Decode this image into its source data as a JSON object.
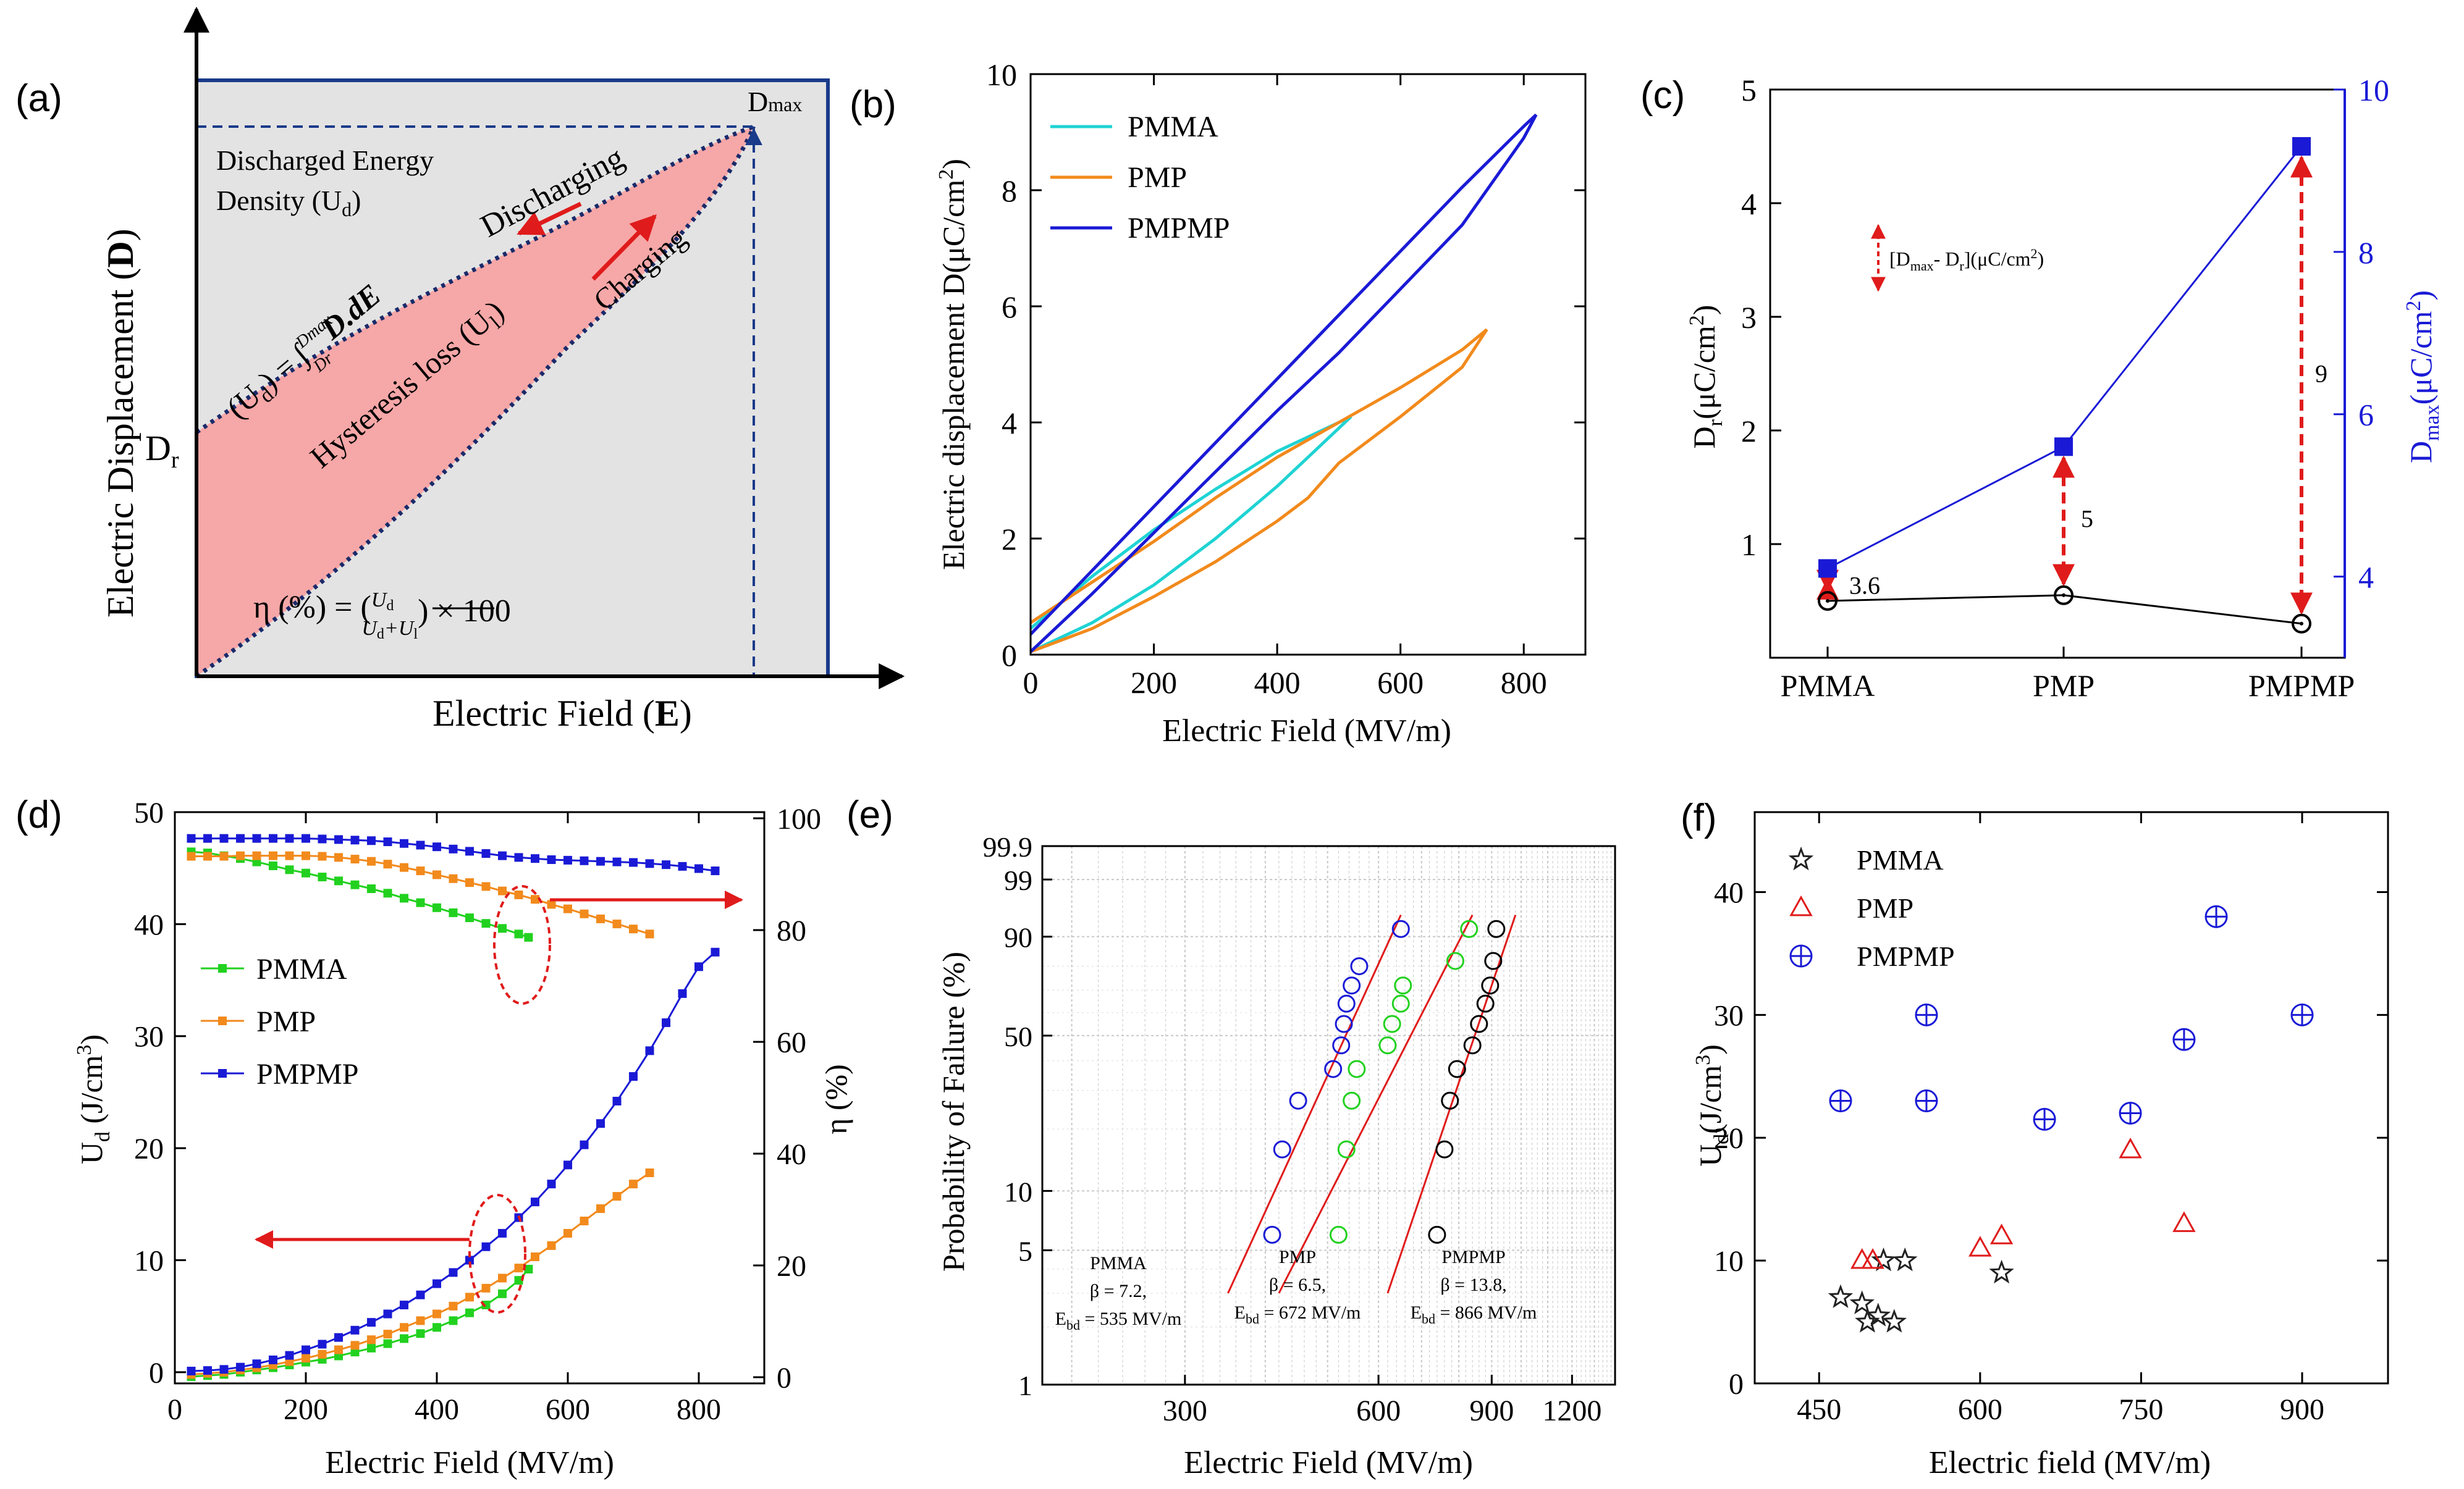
{
  "panels": {
    "a": {
      "label": "(a)",
      "xlabel_main": "Electric Field (",
      "xlabel_bold": "E",
      "xlabel_end": ")",
      "ylabel_main": "Electric Displacement (",
      "ylabel_bold": "D",
      "ylabel_end": ")",
      "dmax_label": "D",
      "dmax_sub": "max",
      "dr_label": "D",
      "dr_sub": "r",
      "discharged_line1": "Discharged Energy",
      "discharged_line2": "Density (U",
      "discharged_line2_sub": "d",
      "discharged_line2_end": ")",
      "discharging": "Discharging",
      "charging": "Charging",
      "hysteresis": "Hysteresis loss (U",
      "hysteresis_sub": "l",
      "hysteresis_end": ")",
      "integral_lhs": "(U",
      "integral_lhs_sub": "d",
      "integral_lhs_end": ") = ∫",
      "integral_upper": "Dmax",
      "integral_lower": "Dr",
      "integral_body": "D.dE",
      "efficiency": "η (%) = (",
      "eff_num": "U",
      "eff_num_sub": "d",
      "eff_den": "U",
      "eff_den_sub1": "d",
      "eff_den_plus": "+U",
      "eff_den_sub2": "l",
      "eff_end": ") × 100"
    },
    "b": {
      "label": "(b)",
      "xlabel": "Electric Field (MV/m)",
      "ylabel": "Electric displacement D(μC/cm",
      "ylabel_sup": "2",
      "ylabel_end": ")",
      "xticks": [
        "0",
        "200",
        "400",
        "600",
        "800"
      ],
      "yticks": [
        "0",
        "2",
        "4",
        "6",
        "8",
        "10"
      ]
    },
    "c": {
      "label": "(c)",
      "ylabel_left": "D",
      "ylabel_left_sub": "r",
      "ylabel_left_unit": "(μC/cm",
      "ylabel_left_sup": "2",
      "ylabel_left_end": ")",
      "ylabel_right": "D",
      "ylabel_right_sub": "max",
      "ylabel_right_unit": "(μC/cm",
      "ylabel_right_sup": "2",
      "ylabel_right_end": ")",
      "yticks_left": [
        "1",
        "2",
        "3",
        "4",
        "5"
      ],
      "yticks_right": [
        "4",
        "6",
        "8",
        "10"
      ],
      "legend_text": "[D",
      "legend_sub1": "max",
      "legend_mid": "- D",
      "legend_sub2": "r",
      "legend_end": "](μC/cm",
      "legend_sup": "2",
      "legend_close": ")"
    },
    "d": {
      "label": "(d)",
      "xlabel": "Electric Field (MV/m)",
      "ylabel_left": "U",
      "ylabel_left_sub": "d",
      "ylabel_left_unit": " (J/cm",
      "ylabel_left_sup": "3",
      "ylabel_left_end": ")",
      "ylabel_right": "η (%)",
      "xticks": [
        "0",
        "200",
        "400",
        "600",
        "800"
      ],
      "yticks_left": [
        "0",
        "10",
        "20",
        "30",
        "40",
        "50"
      ],
      "yticks_right": [
        "0",
        "20",
        "40",
        "60",
        "80",
        "100"
      ]
    },
    "e": {
      "label": "(e)",
      "xlabel": "Electric Field (MV/m)",
      "ylabel": "Probability of Failure (%)",
      "xticks": [
        "300",
        "600",
        "900",
        "1200"
      ],
      "yticks": [
        "1",
        "5",
        "10",
        "50",
        "90",
        "99",
        "99.9"
      ],
      "ann_pmma": [
        "PMMA",
        "β = 7.2,",
        "E",
        "bd",
        " = 535 MV/m"
      ],
      "ann_pmp": [
        "PMP",
        "β = 6.5,",
        "E",
        "bd",
        " = 672 MV/m"
      ],
      "ann_pmpmp": [
        "PMPMP",
        "β = 13.8,",
        "E",
        "bd",
        " = 866 MV/m"
      ]
    },
    "f": {
      "label": "(f)",
      "xlabel": "Electric field (MV/m)",
      "ylabel": "U",
      "ylabel_sub": "d",
      "ylabel_unit": "(J/cm",
      "ylabel_sup": "3",
      "ylabel_end": ")",
      "xticks": [
        "450",
        "600",
        "750",
        "900"
      ],
      "yticks": [
        "0",
        "10",
        "20",
        "30",
        "40"
      ]
    }
  },
  "colors": {
    "pmma_b": "#1fd3d3",
    "pmp": "#f28a1c",
    "pmpmp": "#1a1ad6",
    "pmma_d": "#22d11f",
    "red": "#e01b1b",
    "axis": "#000000",
    "grey_fill": "#e3e3e3",
    "pink_fill": "#f6a7a7"
  },
  "chart_data": [
    {
      "panel": "b",
      "type": "line",
      "xlabel": "Electric Field (MV/m)",
      "ylabel": "Electric displacement D(μC/cm2)",
      "xlim": [
        0,
        900
      ],
      "ylim": [
        0,
        10
      ],
      "series": [
        {
          "name": "PMMA",
          "color": "#1fd3d3",
          "x": [
            0,
            100,
            200,
            300,
            400,
            450,
            520,
            450,
            400,
            300,
            200,
            100,
            0
          ],
          "y": [
            0.05,
            0.55,
            1.2,
            2.0,
            2.9,
            3.4,
            4.1,
            3.75,
            3.5,
            2.85,
            2.15,
            1.35,
            0.45
          ]
        },
        {
          "name": "PMP",
          "color": "#f28a1c",
          "x": [
            0,
            100,
            200,
            300,
            400,
            450,
            500,
            600,
            700,
            740,
            700,
            600,
            500,
            400,
            300,
            200,
            100,
            0
          ],
          "y": [
            0.05,
            0.45,
            1.0,
            1.6,
            2.3,
            2.7,
            3.3,
            4.1,
            4.95,
            5.6,
            5.25,
            4.6,
            4.0,
            3.4,
            2.7,
            1.95,
            1.25,
            0.55
          ]
        },
        {
          "name": "PMPMP",
          "color": "#1a1ad6",
          "x": [
            0,
            100,
            200,
            300,
            400,
            500,
            600,
            700,
            800,
            820,
            800,
            700,
            600,
            500,
            400,
            300,
            200,
            100,
            0
          ],
          "y": [
            0.05,
            1.05,
            2.1,
            3.15,
            4.2,
            5.2,
            6.3,
            7.4,
            8.9,
            9.3,
            9.1,
            8.05,
            6.95,
            5.85,
            4.75,
            3.65,
            2.55,
            1.45,
            0.35
          ]
        }
      ]
    },
    {
      "panel": "c",
      "type": "line",
      "categories": [
        "PMMA",
        "PMP",
        "PMPMP"
      ],
      "ylim_left": [
        0.2,
        5
      ],
      "ylim_right": [
        3.2,
        10
      ],
      "series": [
        {
          "name": "Dr",
          "axis": "left",
          "color": "#000000",
          "values": [
            0.5,
            0.55,
            0.3
          ]
        },
        {
          "name": "Dmax",
          "axis": "right",
          "color": "#1a1ad6",
          "values": [
            4.1,
            5.6,
            9.3
          ]
        }
      ],
      "arrow_labels": [
        "3.6",
        "5",
        "9"
      ]
    },
    {
      "panel": "d",
      "type": "line",
      "xlabel": "Electric Field (MV/m)",
      "xlim": [
        0,
        900
      ],
      "ylim_left": [
        -1,
        50
      ],
      "ylim_right": [
        0,
        100
      ],
      "series": [
        {
          "name": "PMMA",
          "axis": "left",
          "color": "#22d11f",
          "x": [
            25,
            50,
            75,
            100,
            125,
            150,
            175,
            200,
            225,
            250,
            275,
            300,
            325,
            350,
            375,
            400,
            425,
            450,
            475,
            500,
            525,
            540
          ],
          "y": [
            -0.4,
            -0.3,
            -0.2,
            0.0,
            0.2,
            0.4,
            0.65,
            0.9,
            1.15,
            1.45,
            1.8,
            2.15,
            2.55,
            3.0,
            3.45,
            4.0,
            4.6,
            5.3,
            6.0,
            7.0,
            8.2,
            9.2
          ]
        },
        {
          "name": "PMP",
          "axis": "left",
          "color": "#f28a1c",
          "x": [
            25,
            50,
            75,
            100,
            125,
            150,
            175,
            200,
            225,
            250,
            275,
            300,
            325,
            350,
            375,
            400,
            425,
            450,
            475,
            500,
            525,
            550,
            575,
            600,
            625,
            650,
            675,
            700,
            725
          ],
          "y": [
            -0.2,
            -0.1,
            0.0,
            0.2,
            0.4,
            0.65,
            0.95,
            1.25,
            1.6,
            2.0,
            2.4,
            2.9,
            3.4,
            4.0,
            4.6,
            5.2,
            5.9,
            6.7,
            7.5,
            8.4,
            9.3,
            10.3,
            11.3,
            12.4,
            13.5,
            14.6,
            15.7,
            16.8,
            17.8
          ]
        },
        {
          "name": "PMPMP",
          "axis": "left",
          "color": "#1a1ad6",
          "x": [
            25,
            50,
            75,
            100,
            125,
            150,
            175,
            200,
            225,
            250,
            275,
            300,
            325,
            350,
            375,
            400,
            425,
            450,
            475,
            500,
            525,
            550,
            575,
            600,
            625,
            650,
            675,
            700,
            725,
            750,
            775,
            800,
            825
          ],
          "y": [
            0.1,
            0.15,
            0.25,
            0.45,
            0.75,
            1.1,
            1.5,
            2.0,
            2.5,
            3.1,
            3.75,
            4.45,
            5.2,
            6.0,
            6.9,
            7.9,
            8.9,
            10.0,
            11.2,
            12.4,
            13.8,
            15.2,
            16.8,
            18.5,
            20.3,
            22.2,
            24.2,
            26.4,
            28.7,
            31.2,
            33.8,
            36.2,
            37.5
          ]
        },
        {
          "name": "PMMA η",
          "axis": "right",
          "color": "#22d11f",
          "x": [
            25,
            50,
            75,
            100,
            125,
            150,
            175,
            200,
            225,
            250,
            275,
            300,
            325,
            350,
            375,
            400,
            425,
            450,
            475,
            500,
            525,
            540
          ],
          "y": [
            94.0,
            93.8,
            93.3,
            92.8,
            92.2,
            91.5,
            90.8,
            90.2,
            89.5,
            88.8,
            88.1,
            87.4,
            86.6,
            85.7,
            84.9,
            84.0,
            83.1,
            82.2,
            81.2,
            80.3,
            79.3,
            78.7
          ]
        },
        {
          "name": "PMP η",
          "axis": "right",
          "color": "#f28a1c",
          "x": [
            25,
            50,
            75,
            100,
            125,
            150,
            175,
            200,
            225,
            250,
            275,
            300,
            325,
            350,
            375,
            400,
            425,
            450,
            475,
            500,
            525,
            550,
            575,
            600,
            625,
            650,
            675,
            700,
            725
          ],
          "y": [
            93.2,
            93.2,
            93.2,
            93.3,
            93.3,
            93.3,
            93.3,
            93.3,
            93.2,
            93.0,
            92.7,
            92.3,
            91.8,
            91.2,
            90.6,
            89.9,
            89.2,
            88.5,
            87.8,
            87.0,
            86.3,
            85.5,
            84.6,
            83.8,
            82.9,
            82.0,
            81.1,
            80.2,
            79.3
          ]
        },
        {
          "name": "PMPMP η",
          "axis": "right",
          "color": "#1a1ad6",
          "x": [
            25,
            50,
            75,
            100,
            125,
            150,
            175,
            200,
            225,
            250,
            275,
            300,
            325,
            350,
            375,
            400,
            425,
            450,
            475,
            500,
            525,
            550,
            575,
            600,
            625,
            650,
            675,
            700,
            725,
            750,
            775,
            800,
            825
          ],
          "y": [
            96.4,
            96.4,
            96.4,
            96.4,
            96.4,
            96.4,
            96.4,
            96.4,
            96.3,
            96.2,
            96.1,
            96.0,
            95.8,
            95.5,
            95.2,
            94.9,
            94.5,
            94.1,
            93.7,
            93.3,
            93.0,
            92.8,
            92.6,
            92.5,
            92.4,
            92.3,
            92.2,
            92.1,
            91.9,
            91.7,
            91.4,
            91.0,
            90.6
          ]
        }
      ]
    },
    {
      "panel": "e",
      "type": "scatter",
      "xscale": "log",
      "xlim": [
        180,
        1400
      ],
      "ylim_prob": [
        1,
        99.9
      ],
      "series": [
        {
          "name": "PMMA",
          "color": "#1a1ad6",
          "x": [
            410,
            425,
            450,
            510,
            525,
            530,
            535,
            545,
            560,
            650
          ],
          "prob": [
            6,
            16,
            27,
            37,
            46,
            55,
            64,
            72,
            80,
            92
          ],
          "fit_x": [
            350,
            650
          ],
          "fit_prob": [
            3,
            95
          ]
        },
        {
          "name": "PMP",
          "color": "#22d11f",
          "x": [
            520,
            535,
            545,
            555,
            620,
            630,
            650,
            655,
            790,
            830
          ],
          "prob": [
            6,
            16,
            27,
            37,
            46,
            55,
            64,
            72,
            82,
            92
          ],
          "fit_x": [
            420,
            840
          ],
          "fit_prob": [
            3,
            95
          ]
        },
        {
          "name": "PMPMP",
          "color": "#000000",
          "x": [
            740,
            760,
            775,
            795,
            840,
            860,
            880,
            895,
            905,
            915
          ],
          "prob": [
            6,
            16,
            27,
            37,
            46,
            55,
            64,
            72,
            82,
            92
          ],
          "fit_x": [
            620,
            980
          ],
          "fit_prob": [
            3,
            95
          ]
        }
      ]
    },
    {
      "panel": "f",
      "type": "scatter",
      "xlabel": "Electric field (MV/m)",
      "xlim": [
        420,
        960
      ],
      "ylim": [
        0,
        45
      ],
      "series": [
        {
          "name": "PMMA",
          "marker": "star",
          "color": "#222222",
          "x": [
            470,
            490,
            495,
            505,
            510,
            520,
            530,
            620
          ],
          "y": [
            7,
            6.5,
            5,
            5.5,
            10,
            5,
            10,
            9
          ]
        },
        {
          "name": "PMP",
          "marker": "triangle",
          "color": "#e01b1b",
          "x": [
            490,
            500,
            600,
            620,
            740,
            790
          ],
          "y": [
            10,
            10,
            11,
            12,
            19,
            13
          ]
        },
        {
          "name": "PMPMP",
          "marker": "circle-plus",
          "color": "#1a1ad6",
          "x": [
            470,
            550,
            550,
            660,
            740,
            790,
            820,
            900
          ],
          "y": [
            23,
            30,
            23,
            21.5,
            22,
            28,
            38,
            30
          ]
        }
      ]
    }
  ]
}
